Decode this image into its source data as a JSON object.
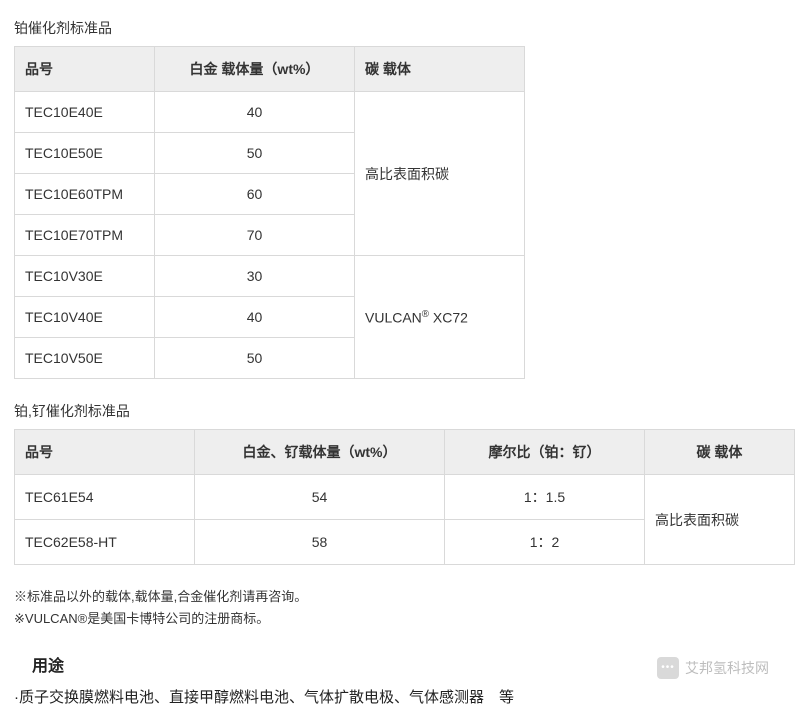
{
  "table1": {
    "title": "铂催化剂标准品",
    "headers": [
      "品号",
      "白金 载体量（wt%）",
      "碳 载体"
    ],
    "group1": {
      "rows": [
        {
          "code": "TEC10E40E",
          "wt": "40"
        },
        {
          "code": "TEC10E50E",
          "wt": "50"
        },
        {
          "code": "TEC10E60TPM",
          "wt": "60"
        },
        {
          "code": "TEC10E70TPM",
          "wt": "70"
        }
      ],
      "carrier": "高比表面积碳"
    },
    "group2": {
      "rows": [
        {
          "code": "TEC10V30E",
          "wt": "30"
        },
        {
          "code": "TEC10V40E",
          "wt": "40"
        },
        {
          "code": "TEC10V50E",
          "wt": "50"
        }
      ],
      "carrier_pre": "VULCAN",
      "carrier_sup": "®",
      "carrier_post": " XC72"
    }
  },
  "table2": {
    "title": "铂,钌催化剂标准品",
    "headers": [
      "品号",
      "白金、钌载体量（wt%）",
      "摩尔比（铂：钌）",
      "碳 载体"
    ],
    "rows": [
      {
        "code": "TEC61E54",
        "wt": "54",
        "ratio": "1：1.5"
      },
      {
        "code": "TEC62E58-HT",
        "wt": "58",
        "ratio": "1：2"
      }
    ],
    "carrier": "高比表面积碳"
  },
  "notes": [
    "※标准品以外的载体,载体量,合金催化剂请再咨询。",
    "※VULCAN®是美国卡博特公司的注册商标。"
  ],
  "usage_heading": "用途",
  "usage_line": "·质子交换膜燃料电池、直接甲醇燃料电池、气体扩散电极、气体感测器　等",
  "watermark": "艾邦氢科技网"
}
